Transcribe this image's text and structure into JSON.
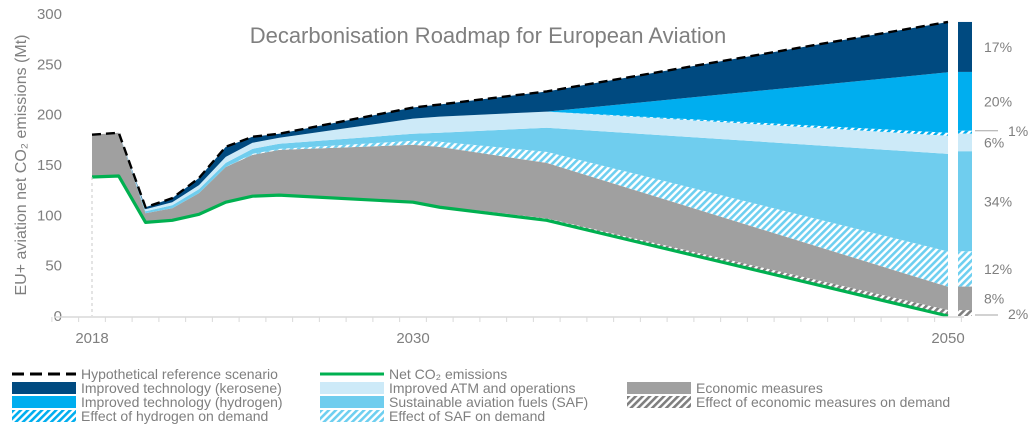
{
  "chart_data": {
    "type": "area",
    "title": "Decarbonisation Roadmap for European Aviation",
    "ylabel": "EU+ aviation net CO₂ emissions (Mt)",
    "xlabel": "",
    "ylim": [
      0,
      300
    ],
    "yticks": [
      0,
      50,
      100,
      150,
      200,
      250,
      300
    ],
    "xlim": [
      2017,
      2051
    ],
    "xtick_labels": [
      {
        "year": 2018,
        "label": "2018"
      },
      {
        "year": 2030,
        "label": "2030"
      },
      {
        "year": 2050,
        "label": "2050"
      }
    ],
    "x": [
      2018,
      2019,
      2020,
      2021,
      2022,
      2023,
      2024,
      2025,
      2030,
      2031,
      2035,
      2050
    ],
    "stack_boundaries_note": "Cumulative boundaries from net emissions (bottom) up to reference scenario (top), in Mt CO2",
    "series": [
      {
        "name": "Net CO₂ emissions",
        "key": "net",
        "color": "#00b050",
        "style": "line",
        "values": [
          138,
          139,
          93,
          95,
          101,
          113,
          119,
          120,
          113,
          108,
          95,
          0
        ]
      },
      {
        "name": "Effect of economic measures on demand",
        "key": "econ_demand",
        "color": "#7f7f7f",
        "style": "hatch-gray",
        "top": [
          138,
          139,
          93,
          95,
          101,
          113,
          119,
          120,
          114,
          109,
          97,
          6
        ]
      },
      {
        "name": "Economic measures",
        "key": "econ",
        "color": "#a0a0a0",
        "style": "fill",
        "top": [
          180,
          182,
          102,
          107,
          122,
          148,
          160,
          165,
          170,
          168,
          152,
          29
        ]
      },
      {
        "name": "Effect of SAF on demand",
        "key": "saf_demand",
        "color": "#6ecff0",
        "style": "hatch-blue",
        "top": [
          180,
          182,
          102,
          107,
          122,
          148,
          161,
          166,
          174,
          173,
          163,
          64
        ]
      },
      {
        "name": "Sustainable aviation fuels (SAF)",
        "key": "saf",
        "color": "#6fcdee",
        "style": "fill",
        "top": [
          180,
          182,
          104,
          110,
          126,
          152,
          166,
          171,
          181,
          182,
          187,
          161
        ]
      },
      {
        "name": "Improved ATM and operations",
        "key": "atm",
        "color": "#cdeaf8",
        "style": "fill",
        "top": [
          180,
          182,
          106,
          113,
          130,
          158,
          172,
          177,
          196,
          198,
          203,
          179
        ]
      },
      {
        "name": "Effect of hydrogen on demand",
        "key": "h2_demand",
        "color": "#00aeef",
        "style": "hatch-blue",
        "top": [
          180,
          182,
          106,
          113,
          130,
          158,
          172,
          177,
          196,
          198,
          203,
          182
        ]
      },
      {
        "name": "Improved technology (hydrogen)",
        "key": "h2",
        "color": "#00aeef",
        "style": "fill",
        "top": [
          180,
          182,
          106,
          113,
          130,
          158,
          172,
          177,
          196,
          198,
          203,
          242
        ]
      },
      {
        "name": "Improved technology (kerosene)",
        "key": "kero",
        "color": "#004a80",
        "style": "fill",
        "top": [
          180,
          182,
          108,
          117,
          137,
          168,
          178,
          181,
          207,
          210,
          223,
          292
        ]
      },
      {
        "name": "Hypothetical reference scenario",
        "key": "ref",
        "color": "#000000",
        "style": "dashed-line",
        "values": [
          180,
          182,
          108,
          117,
          137,
          168,
          178,
          181,
          207,
          210,
          223,
          292
        ]
      }
    ],
    "bar_2050_shares": [
      {
        "label": "17%",
        "key": "kero",
        "value": 17
      },
      {
        "label": "20%",
        "key": "h2",
        "value": 20
      },
      {
        "label": "1%",
        "key": "h2_demand",
        "value": 1
      },
      {
        "label": "6%",
        "key": "atm",
        "value": 6
      },
      {
        "label": "34%",
        "key": "saf",
        "value": 34
      },
      {
        "label": "12%",
        "key": "saf_demand",
        "value": 12
      },
      {
        "label": "8%",
        "key": "econ",
        "value": 8
      },
      {
        "label": "2%",
        "key": "econ_demand",
        "value": 2
      }
    ],
    "grid": false,
    "legend": "bottom"
  },
  "legend": {
    "items": [
      {
        "label": "Hypothetical reference scenario",
        "swatch": "dashed"
      },
      {
        "label": "Improved technology (kerosene)",
        "swatch": "kero"
      },
      {
        "label": "Improved technology (hydrogen)",
        "swatch": "h2"
      },
      {
        "label": "Effect of hydrogen on demand",
        "swatch": "hatch-h2"
      },
      {
        "label": "Net CO₂ emissions",
        "swatch": "green"
      },
      {
        "label": "Improved ATM and operations",
        "swatch": "atm"
      },
      {
        "label": "Sustainable aviation fuels (SAF)",
        "swatch": "saf"
      },
      {
        "label": "Effect of SAF on demand",
        "swatch": "hatch-saf"
      },
      {
        "label": "Economic measures",
        "swatch": "econ"
      },
      {
        "label": "Effect of economic measures on demand",
        "swatch": "hatch-econ"
      }
    ]
  }
}
